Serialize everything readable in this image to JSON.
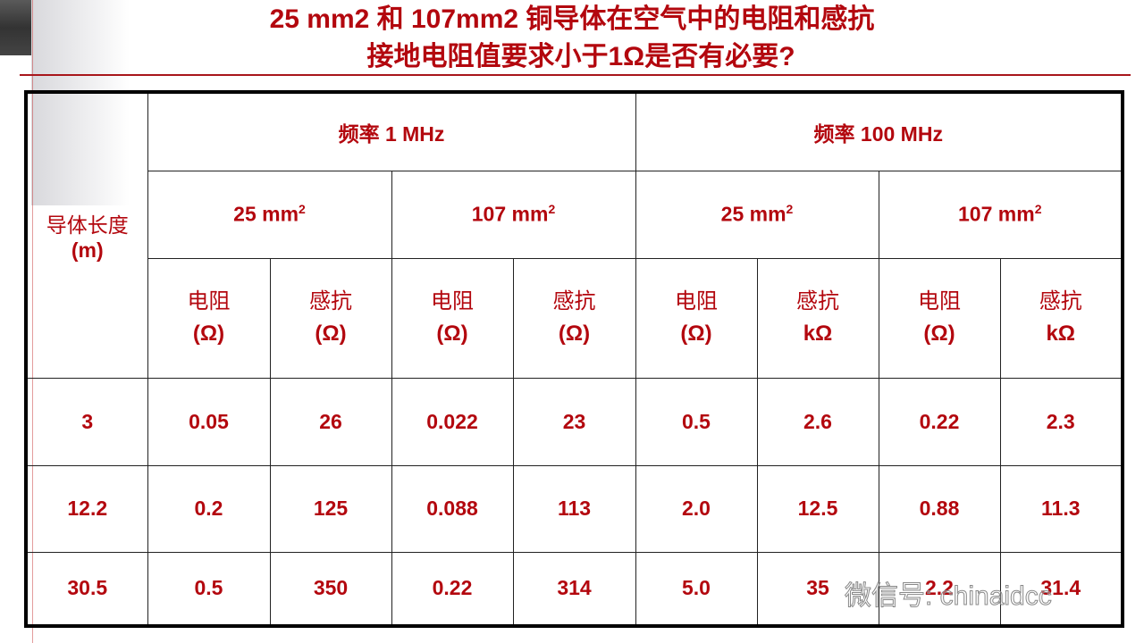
{
  "title": {
    "line1": "25 mm2 和 107mm2 铜导体在空气中的电阻和感抗",
    "line2": "接地电阻值要求小于1Ω是否有必要?"
  },
  "table": {
    "row_header": [
      "导体长度",
      "(m)"
    ],
    "freq_headers": [
      "频率  1 MHz",
      "频率  100 MHz"
    ],
    "sizes": [
      [
        "25 mm",
        "2"
      ],
      [
        "107 mm",
        "2"
      ],
      [
        "25 mm",
        "2"
      ],
      [
        "107 mm",
        "2"
      ]
    ],
    "sub_headers": [
      [
        "电阻",
        "(Ω)"
      ],
      [
        "感抗",
        "(Ω)"
      ],
      [
        "电阻",
        "(Ω)"
      ],
      [
        "感抗",
        "(Ω)"
      ],
      [
        "电阻",
        "(Ω)"
      ],
      [
        "感抗",
        "kΩ"
      ],
      [
        "电阻",
        "(Ω)"
      ],
      [
        "感抗",
        "kΩ"
      ]
    ],
    "rows": [
      [
        "3",
        "0.05",
        "26",
        "0.022",
        "23",
        "0.5",
        "2.6",
        "0.22",
        "2.3"
      ],
      [
        "12.2",
        "0.2",
        "125",
        "0.088",
        "113",
        "2.0",
        "12.5",
        "0.88",
        "11.3"
      ],
      [
        "30.5",
        "0.5",
        "350",
        "0.22",
        "314",
        "5.0",
        "35",
        "2.2",
        "31.4"
      ]
    ]
  },
  "watermark": "微信号: chinaidcc",
  "colors": {
    "accent": "#b3070e"
  }
}
